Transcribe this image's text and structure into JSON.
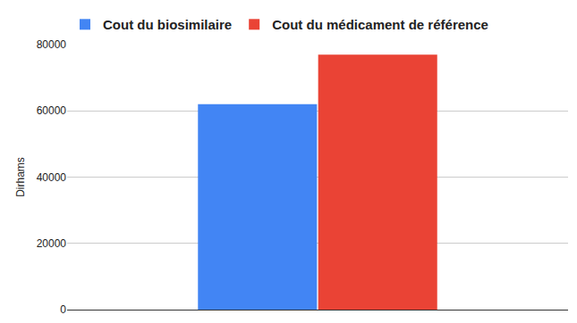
{
  "chart_data": {
    "type": "bar",
    "y_label": "Dirhams",
    "categories": [
      null
    ],
    "series": [
      {
        "name": "Cout du biosimilaire",
        "color": "#4285f4",
        "values": [
          62000
        ]
      },
      {
        "name": "Cout du médicament de référence",
        "color": "#ea4335",
        "values": [
          77000
        ]
      }
    ],
    "ylim": [
      0,
      80000
    ],
    "yticks": [
      0,
      20000,
      40000,
      60000,
      80000
    ],
    "grid": true,
    "legend": "top"
  }
}
